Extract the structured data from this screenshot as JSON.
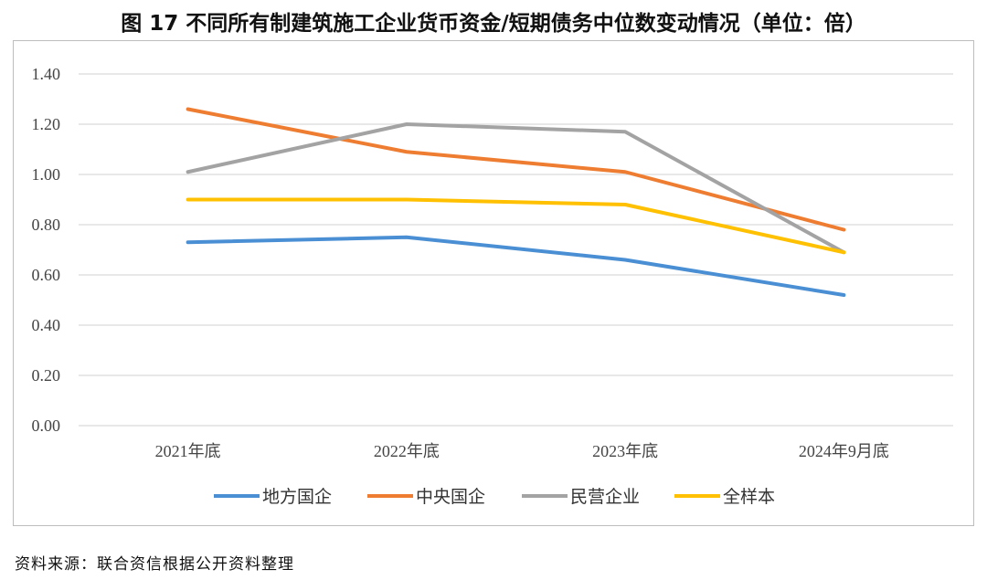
{
  "title": "图 17    不同所有制建筑施工企业货币资金/短期债务中位数变动情况（单位：倍）",
  "source": "资料来源：联合资信根据公开资料整理",
  "chart_data": {
    "type": "line",
    "categories": [
      "2021年底",
      "2022年底",
      "2023年底",
      "2024年9月底"
    ],
    "ylim": [
      0,
      1.4
    ],
    "yticks": [
      "0.00",
      "0.20",
      "0.40",
      "0.60",
      "0.80",
      "1.00",
      "1.20",
      "1.40"
    ],
    "grid": true,
    "legend_position": "bottom",
    "series": [
      {
        "name": "地方国企",
        "color": "#4a8fd3",
        "values": [
          0.73,
          0.75,
          0.66,
          0.52
        ]
      },
      {
        "name": "中央国企",
        "color": "#ee7d31",
        "values": [
          1.26,
          1.09,
          1.01,
          0.78
        ]
      },
      {
        "name": "民营企业",
        "color": "#a3a3a3",
        "values": [
          1.01,
          1.2,
          1.17,
          0.69
        ]
      },
      {
        "name": "全样本",
        "color": "#ffc000",
        "values": [
          0.9,
          0.9,
          0.88,
          0.69
        ]
      }
    ]
  }
}
